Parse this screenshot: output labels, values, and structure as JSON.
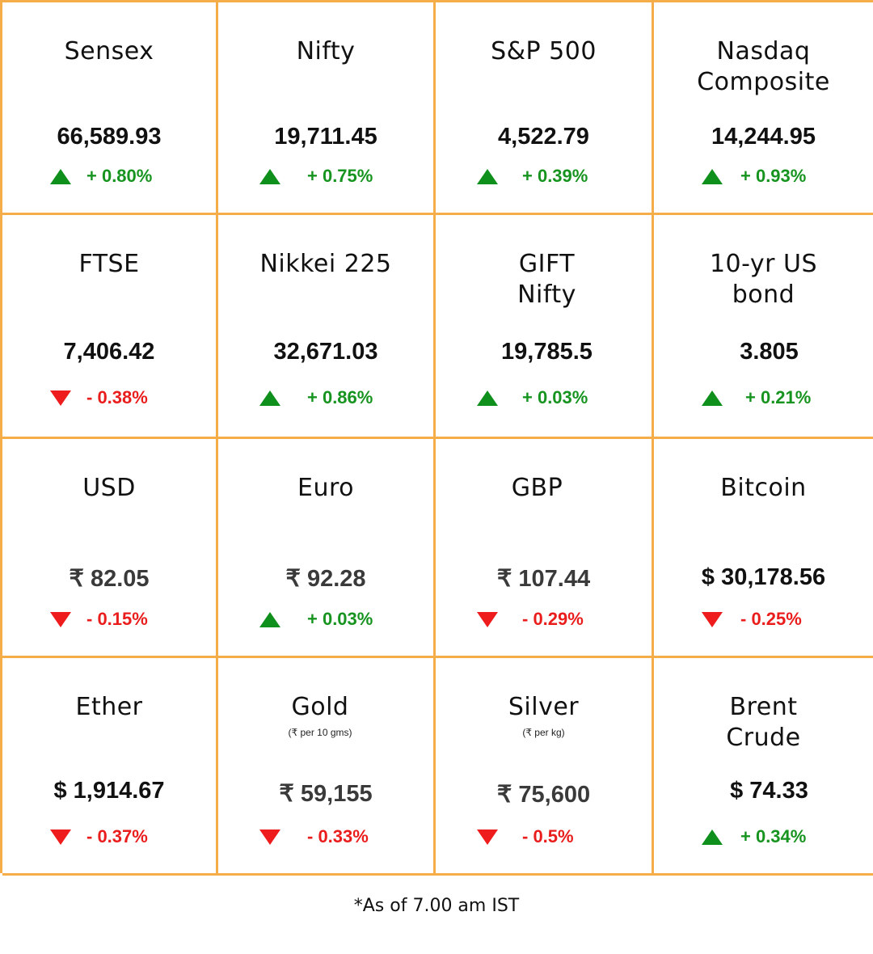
{
  "tiles": [
    {
      "title": [
        "Sensex"
      ],
      "value": "66,589.93",
      "direction": "up",
      "change": "+ 0.80%"
    },
    {
      "title": [
        "Nifty"
      ],
      "value": "19,711.45",
      "direction": "up",
      "change": "+ 0.75%"
    },
    {
      "title": [
        "S&P 500"
      ],
      "value": "4,522.79",
      "direction": "up",
      "change": "+ 0.39%"
    },
    {
      "title": [
        "Nasdaq",
        "Composite"
      ],
      "value": "14,244.95",
      "direction": "up",
      "change": "+ 0.93%"
    },
    {
      "title": [
        "FTSE"
      ],
      "value": "7,406.42",
      "direction": "down",
      "change": "- 0.38%"
    },
    {
      "title": [
        "Nikkei 225"
      ],
      "value": "32,671.03",
      "direction": "up",
      "change": "+ 0.86%"
    },
    {
      "title": [
        "GIFT",
        "Nifty"
      ],
      "value": "19,785.5",
      "direction": "up",
      "change": "+ 0.03%"
    },
    {
      "title": [
        "10-yr US",
        "bond"
      ],
      "value": "3.805",
      "direction": "up",
      "change": "+ 0.21%"
    },
    {
      "title": [
        "USD"
      ],
      "value": "₹ 82.05",
      "direction": "down",
      "change": "- 0.15%"
    },
    {
      "title": [
        "Euro"
      ],
      "value": "₹ 92.28",
      "direction": "up",
      "change": "+ 0.03%"
    },
    {
      "title": [
        "GBP"
      ],
      "value": "₹ 107.44",
      "direction": "down",
      "change": "- 0.29%"
    },
    {
      "title": [
        "Bitcoin"
      ],
      "value": "$ 30,178.56",
      "direction": "down",
      "change": "- 0.25%"
    },
    {
      "title": [
        "Ether"
      ],
      "value": "$ 1,914.67",
      "direction": "down",
      "change": "- 0.37%"
    },
    {
      "title": [
        "Gold"
      ],
      "subtitle": "(₹ per 10 gms)",
      "value": "₹ 59,155",
      "direction": "down",
      "change": "- 0.33%"
    },
    {
      "title": [
        "Silver"
      ],
      "subtitle": "(₹ per kg)",
      "value": "₹ 75,600",
      "direction": "down",
      "change": "- 0.5%"
    },
    {
      "title": [
        "Brent",
        "Crude"
      ],
      "value": "$ 74.33",
      "direction": "up",
      "change": "+ 0.34%"
    }
  ],
  "footer": "*As of 7.00 am IST",
  "colors": {
    "border": "#f4ad48",
    "up": "#17941f",
    "down": "#ea1d1d"
  }
}
